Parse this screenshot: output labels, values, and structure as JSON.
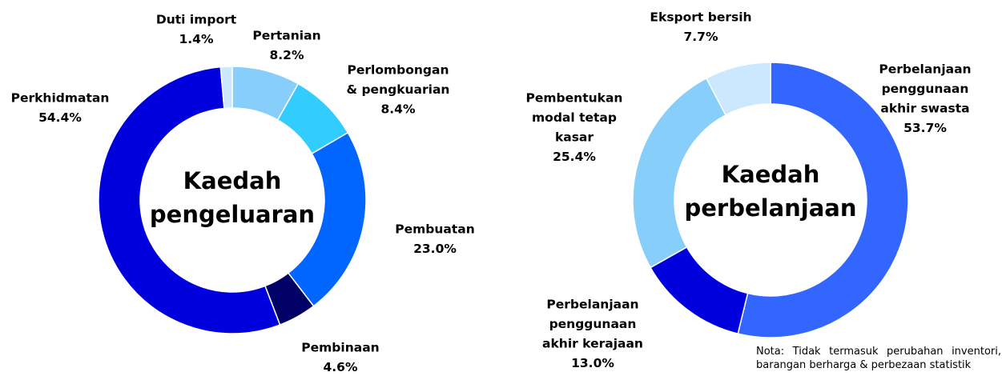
{
  "chart_data": [
    {
      "type": "pie",
      "donut": true,
      "title": [
        "Kaedah",
        "pengeluaran"
      ],
      "categories": [
        [
          "Pertanian"
        ],
        [
          "Perlombongan",
          "& pengkuarian"
        ],
        [
          "Pembuatan"
        ],
        [
          "Pembinaan"
        ],
        [
          "Perkhidmatan"
        ],
        [
          "Duti import"
        ]
      ],
      "values": [
        8.2,
        8.4,
        23.0,
        4.6,
        54.4,
        1.4
      ],
      "value_labels": [
        "8.2%",
        "8.4%",
        "23.0%",
        "4.6%",
        "54.4%",
        "1.4%"
      ],
      "colors": [
        "#87cefa",
        "#33ccff",
        "#0066ff",
        "#000066",
        "#0000dd",
        "#cce8ff"
      ]
    },
    {
      "type": "pie",
      "donut": true,
      "title": [
        "Kaedah",
        "perbelanjaan"
      ],
      "categories": [
        [
          "Perbelanjaan",
          "penggunaan",
          "akhir swasta"
        ],
        [
          "Perbelanjaan",
          "penggunaan",
          "akhir kerajaan"
        ],
        [
          "Pembentukan",
          "modal tetap",
          "kasar"
        ],
        [
          "Eksport bersih"
        ]
      ],
      "values": [
        53.7,
        13.0,
        25.4,
        7.7
      ],
      "value_labels": [
        "53.7%",
        "13.0%",
        "25.4%",
        "7.7%"
      ],
      "colors": [
        "#3366ff",
        "#0000dd",
        "#87cefa",
        "#cce8ff"
      ],
      "note": "Nota: Tidak termasuk perubahan inventori, barangan berharga & perbezaan statistik"
    }
  ]
}
